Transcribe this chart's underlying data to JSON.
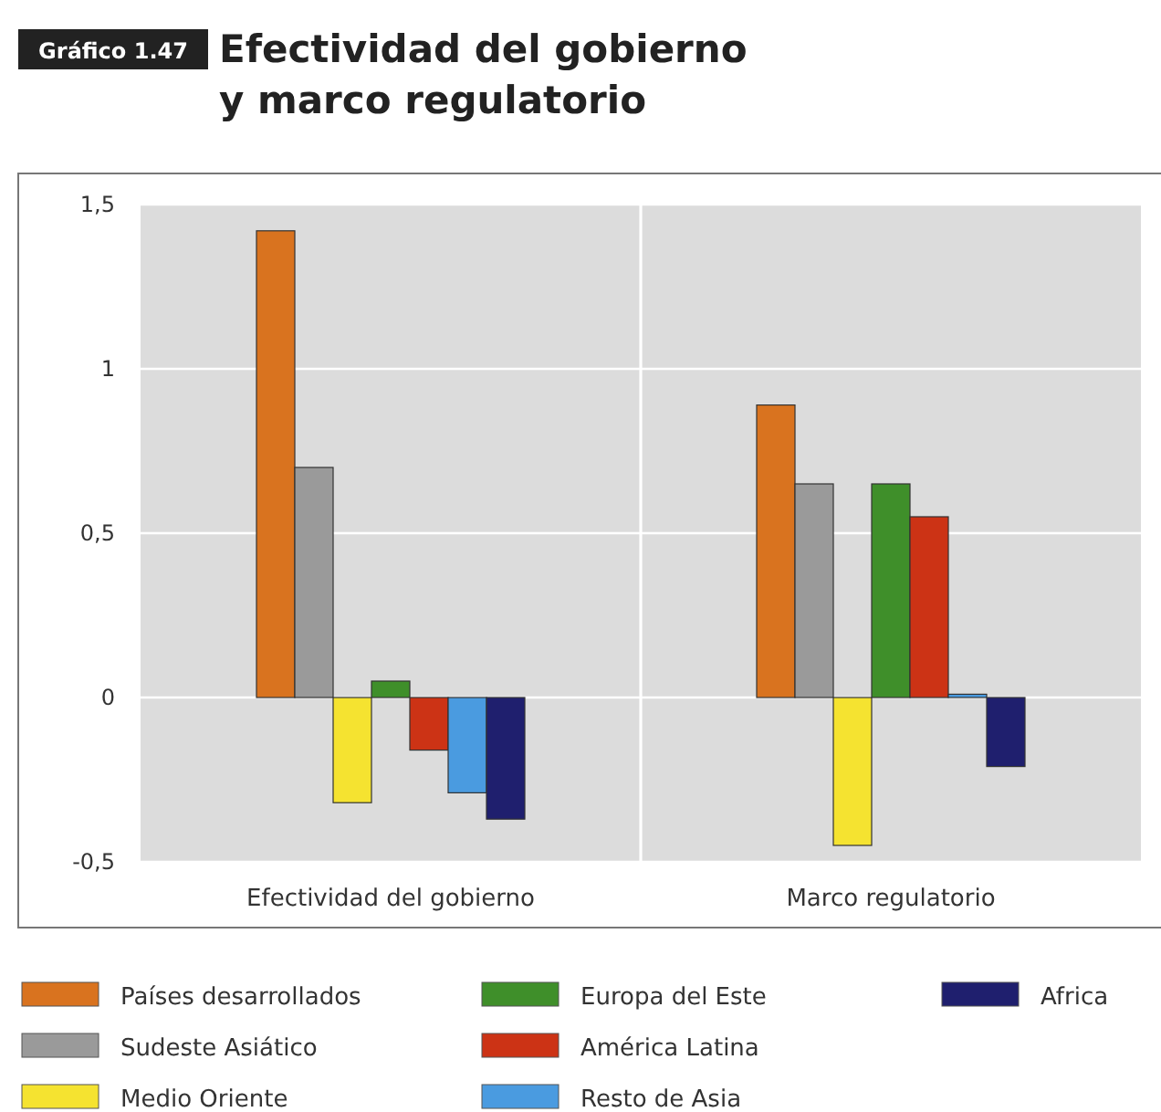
{
  "chart_data": {
    "type": "bar",
    "title": "Efectividad del gobierno\ny marco regulatorio",
    "annotations": [
      "Gráfico 1.47"
    ],
    "categories": [
      "Efectividad del gobierno",
      "Marco regulatorio"
    ],
    "series": [
      {
        "name": "Países desarrollados",
        "color": "#d9731f",
        "values": [
          1.42,
          0.89
        ]
      },
      {
        "name": "Sudeste Asiático",
        "color": "#9a9a9a",
        "values": [
          0.7,
          0.65
        ]
      },
      {
        "name": "Medio Oriente",
        "color": "#f5e330",
        "values": [
          -0.32,
          -0.45
        ]
      },
      {
        "name": "Europa del Este",
        "color": "#3f8f2a",
        "values": [
          0.05,
          0.65
        ]
      },
      {
        "name": "América Latina",
        "color": "#cc3315",
        "values": [
          -0.16,
          0.55
        ]
      },
      {
        "name": "Resto de Asia",
        "color": "#4a9be0",
        "values": [
          -0.29,
          0.01
        ]
      },
      {
        "name": "Africa",
        "color": "#1f1f6e",
        "values": [
          -0.37,
          -0.21
        ]
      }
    ],
    "ylim": [
      -0.5,
      1.5
    ],
    "yticks": [
      {
        "value": -0.5,
        "label": "-0,5"
      },
      0,
      {
        "value": 0.5,
        "label": "0,5"
      },
      1,
      {
        "value": 1.5,
        "label": "1,5"
      }
    ],
    "grid": true,
    "legend": "bottom"
  }
}
